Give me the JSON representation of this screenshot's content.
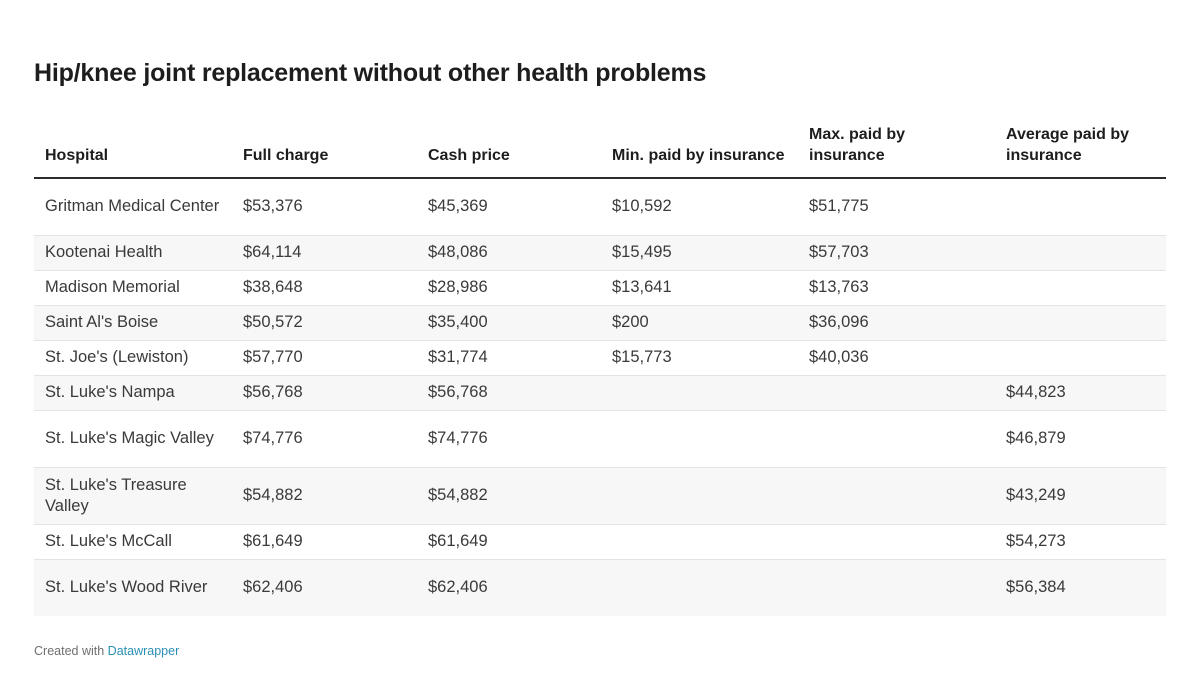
{
  "title": "Hip/knee joint replacement without other health problems",
  "footer": {
    "prefix": "Created with",
    "brand": "Datawrapper"
  },
  "chart_data": {
    "type": "table",
    "title": "Hip/knee joint replacement without other health problems",
    "columns": [
      "Hospital",
      "Full charge",
      "Cash price",
      "Min. paid by insurance",
      "Max. paid by insurance",
      "Average paid by insurance"
    ],
    "rows": [
      [
        "Gritman Medical Center",
        "$53,376",
        "$45,369",
        "$10,592",
        "$51,775",
        ""
      ],
      [
        "Kootenai Health",
        "$64,114",
        "$48,086",
        "$15,495",
        "$57,703",
        ""
      ],
      [
        "Madison Memorial",
        "$38,648",
        "$28,986",
        "$13,641",
        "$13,763",
        ""
      ],
      [
        "Saint Al's Boise",
        "$50,572",
        "$35,400",
        "$200",
        "$36,096",
        ""
      ],
      [
        "St. Joe's (Lewiston)",
        "$57,770",
        "$31,774",
        "$15,773",
        "$40,036",
        ""
      ],
      [
        "St. Luke's Nampa",
        "$56,768",
        "$56,768",
        "",
        "",
        "$44,823"
      ],
      [
        "St. Luke's Magic Valley",
        "$74,776",
        "$74,776",
        "",
        "",
        "$46,879"
      ],
      [
        "St. Luke's Treasure Valley",
        "$54,882",
        "$54,882",
        "",
        "",
        "$43,249"
      ],
      [
        "St. Luke's McCall",
        "$61,649",
        "$61,649",
        "",
        "",
        "$54,273"
      ],
      [
        "St. Luke's Wood River",
        "$62,406",
        "$62,406",
        "",
        "",
        "$56,384"
      ]
    ]
  }
}
